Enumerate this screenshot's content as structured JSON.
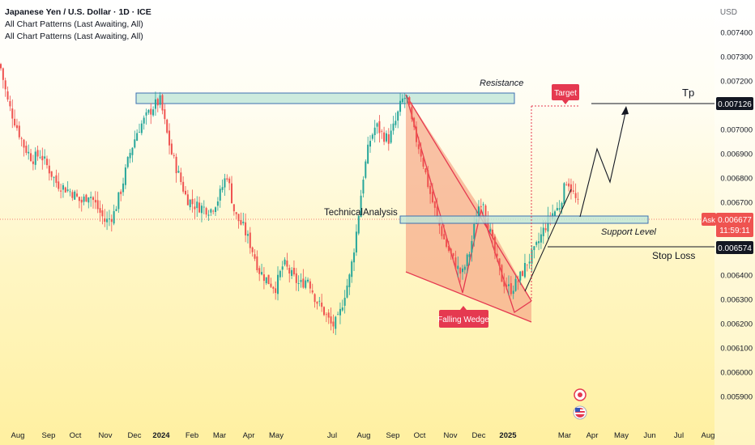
{
  "header": {
    "title": "Japanese Yen / U.S. Dollar · 1D · ICE",
    "indicators": [
      "All Chart Patterns (Last Awaiting, All)",
      "All Chart Patterns (Last Awaiting, All)"
    ],
    "currency": "USD"
  },
  "chart_data": {
    "type": "candlestick",
    "title": "Japanese Yen / U.S. Dollar · 1D · ICE",
    "y_ticks": [
      "0.007400",
      "0.007300",
      "0.007200",
      "0.007100",
      "0.007000",
      "0.006900",
      "0.006800",
      "0.006700",
      "0.006600",
      "0.006500",
      "0.006400",
      "0.006300",
      "0.006200",
      "0.006100",
      "0.006000",
      "0.005900"
    ],
    "x_ticks": [
      {
        "label": "Aug",
        "bold": false
      },
      {
        "label": "Sep",
        "bold": false
      },
      {
        "label": "Oct",
        "bold": false
      },
      {
        "label": "Nov",
        "bold": false
      },
      {
        "label": "Dec",
        "bold": false
      },
      {
        "label": "2024",
        "bold": true
      },
      {
        "label": "Feb",
        "bold": false
      },
      {
        "label": "Mar",
        "bold": false
      },
      {
        "label": "Apr",
        "bold": false
      },
      {
        "label": "May",
        "bold": false
      },
      {
        "label": "Jul",
        "bold": false
      },
      {
        "label": "Aug",
        "bold": false
      },
      {
        "label": "Sep",
        "bold": false
      },
      {
        "label": "Oct",
        "bold": false
      },
      {
        "label": "Nov",
        "bold": false
      },
      {
        "label": "Dec",
        "bold": false
      },
      {
        "label": "2025",
        "bold": true
      },
      {
        "label": "Mar",
        "bold": false
      },
      {
        "label": "Apr",
        "bold": false
      },
      {
        "label": "May",
        "bold": false
      },
      {
        "label": "Jun",
        "bold": false
      },
      {
        "label": "Jul",
        "bold": false
      },
      {
        "label": "Aug",
        "bold": false
      }
    ],
    "ylim": [
      0.0059,
      0.0074
    ],
    "price_path": [
      [
        0,
        0.00727
      ],
      [
        10,
        0.00711
      ],
      [
        20,
        0.00702
      ],
      [
        30,
        0.00693
      ],
      [
        40,
        0.00688
      ],
      [
        50,
        0.0069
      ],
      [
        60,
        0.00684
      ],
      [
        70,
        0.00678
      ],
      [
        80,
        0.00676
      ],
      [
        90,
        0.00674
      ],
      [
        100,
        0.0067
      ],
      [
        110,
        0.00674
      ],
      [
        120,
        0.00668
      ],
      [
        130,
        0.00662
      ],
      [
        140,
        0.00665
      ],
      [
        150,
        0.00676
      ],
      [
        160,
        0.0069
      ],
      [
        170,
        0.007
      ],
      [
        180,
        0.00705
      ],
      [
        190,
        0.0071
      ],
      [
        198,
        0.00712
      ],
      [
        205,
        0.007
      ],
      [
        212,
        0.0069
      ],
      [
        220,
        0.00682
      ],
      [
        230,
        0.00672
      ],
      [
        240,
        0.00669
      ],
      [
        250,
        0.00668
      ],
      [
        260,
        0.00667
      ],
      [
        270,
        0.00672
      ],
      [
        280,
        0.00682
      ],
      [
        290,
        0.00665
      ],
      [
        300,
        0.0066
      ],
      [
        310,
        0.00652
      ],
      [
        320,
        0.00642
      ],
      [
        330,
        0.00638
      ],
      [
        340,
        0.00635
      ],
      [
        350,
        0.00645
      ],
      [
        360,
        0.0064
      ],
      [
        370,
        0.00636
      ],
      [
        380,
        0.00639
      ],
      [
        390,
        0.0063
      ],
      [
        400,
        0.00625
      ],
      [
        410,
        0.00619
      ],
      [
        418,
        0.00622
      ],
      [
        425,
        0.00632
      ],
      [
        432,
        0.0064
      ],
      [
        440,
        0.00658
      ],
      [
        448,
        0.0068
      ],
      [
        456,
        0.00695
      ],
      [
        464,
        0.00702
      ],
      [
        472,
        0.00698
      ],
      [
        480,
        0.00696
      ],
      [
        488,
        0.00703
      ],
      [
        496,
        0.00712
      ],
      [
        502,
        0.00714
      ],
      [
        510,
        0.007
      ],
      [
        520,
        0.0069
      ],
      [
        530,
        0.00675
      ],
      [
        540,
        0.00663
      ],
      [
        550,
        0.00653
      ],
      [
        560,
        0.00646
      ],
      [
        570,
        0.0064
      ],
      [
        580,
        0.0065
      ],
      [
        590,
        0.00668
      ],
      [
        596,
        0.00672
      ],
      [
        602,
        0.00662
      ],
      [
        610,
        0.0065
      ],
      [
        620,
        0.00638
      ],
      [
        630,
        0.00634
      ],
      [
        640,
        0.00638
      ],
      [
        650,
        0.00645
      ],
      [
        660,
        0.0065
      ],
      [
        670,
        0.00658
      ],
      [
        680,
        0.00665
      ],
      [
        690,
        0.00668
      ],
      [
        700,
        0.0068
      ],
      [
        706,
        0.00675
      ],
      [
        712,
        0.0067
      ],
      [
        716,
        0.00668
      ]
    ],
    "annotations": {
      "resistance": "Resistance",
      "technical": "TechnicalAnalysis",
      "support": "Support Level",
      "stop_loss": "Stop Loss",
      "tp": "Tp",
      "target": "Target",
      "falling_wedge": "Falling Wedge"
    },
    "price_labels": {
      "tp": "0.007126",
      "ask_tag": "Ask",
      "ask": "0.006677",
      "countdown": "11:59:11",
      "stop": "0.006574"
    }
  },
  "colors": {
    "up": "#26a69a",
    "down": "#ef5350",
    "zone_fill": "#bfe6d8",
    "zone_stroke": "#3d6fb0",
    "wedge_fill": "#f7a888",
    "wedge_line": "#e53950",
    "label_red": "#e53950"
  }
}
